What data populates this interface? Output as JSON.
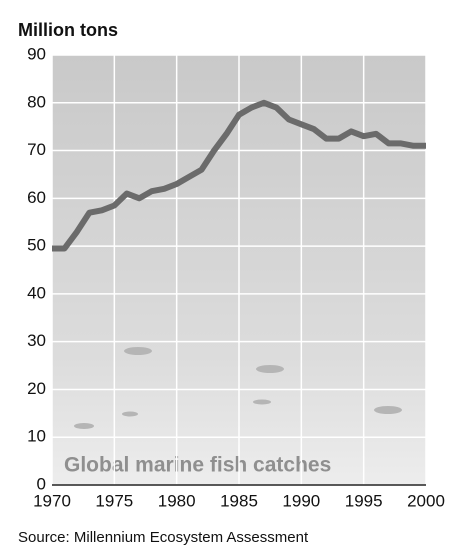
{
  "chart_data": {
    "type": "line",
    "title": "Million tons",
    "annotation": "Global marine fish catches",
    "source": "Source: Millennium Ecosystem Assessment",
    "x": [
      1970,
      1971,
      1972,
      1973,
      1974,
      1975,
      1976,
      1977,
      1978,
      1979,
      1980,
      1981,
      1982,
      1983,
      1984,
      1985,
      1986,
      1987,
      1988,
      1989,
      1990,
      1991,
      1992,
      1993,
      1994,
      1995,
      1996,
      1997,
      1998,
      1999,
      2000
    ],
    "values": [
      49.5,
      49.5,
      53,
      57,
      57.5,
      58.5,
      61,
      60,
      61.5,
      62,
      63,
      64.5,
      66,
      70,
      73.5,
      77.5,
      79,
      80,
      79,
      76.5,
      75.5,
      74.5,
      72.5,
      72.5,
      74,
      73,
      73.5,
      71.5,
      71.5,
      71,
      71
    ],
    "color": "#6b6b6b",
    "xlim": [
      1970,
      2000
    ],
    "xticks": [
      1970,
      1975,
      1980,
      1985,
      1990,
      1995,
      2000
    ],
    "ylim": [
      0,
      90
    ],
    "yticks": [
      0,
      10,
      20,
      30,
      40,
      50,
      60,
      70,
      80,
      90
    ],
    "grid": true
  }
}
